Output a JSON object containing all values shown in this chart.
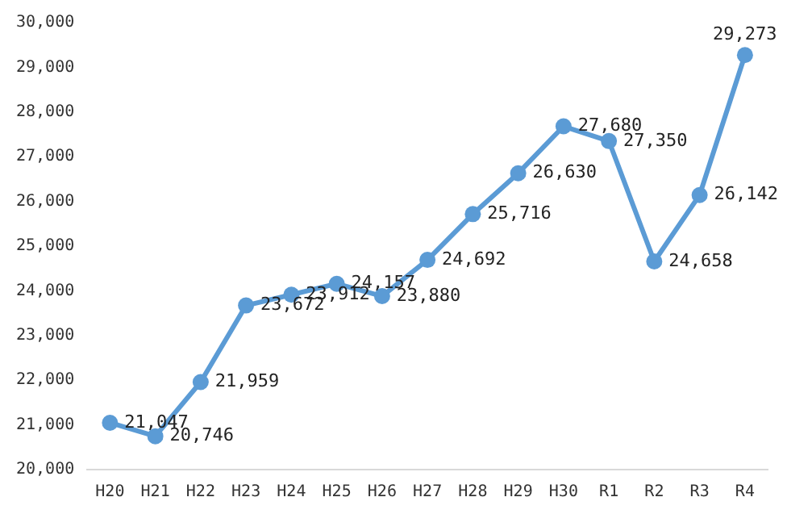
{
  "chart_data": {
    "type": "line",
    "categories": [
      "H20",
      "H21",
      "H22",
      "H23",
      "H24",
      "H25",
      "H26",
      "H27",
      "H28",
      "H29",
      "H30",
      "R1",
      "R2",
      "R3",
      "R4"
    ],
    "values": [
      21047,
      20746,
      21959,
      23672,
      23912,
      24157,
      23880,
      24692,
      25716,
      26630,
      27680,
      27350,
      24658,
      26142,
      29273
    ],
    "value_labels": [
      "21,047",
      "20,746",
      "21,959",
      "23,672",
      "23,912",
      "24,157",
      "23,880",
      "24,692",
      "25,716",
      "26,630",
      "27,680",
      "27,350",
      "24,658",
      "26,142",
      "29,273"
    ],
    "color": "#5b9bd5",
    "marker": "circle",
    "grid": false,
    "legend": false,
    "ylim": [
      20000,
      30000
    ],
    "yticks": [
      {
        "value": 20000,
        "label": "20,000"
      },
      {
        "value": 21000,
        "label": "21,000"
      },
      {
        "value": 22000,
        "label": "22,000"
      },
      {
        "value": 23000,
        "label": "23,000"
      },
      {
        "value": 24000,
        "label": "24,000"
      },
      {
        "value": 25000,
        "label": "25,000"
      },
      {
        "value": 26000,
        "label": "26,000"
      },
      {
        "value": 27000,
        "label": "27,000"
      },
      {
        "value": 28000,
        "label": "28,000"
      },
      {
        "value": 29000,
        "label": "29,000"
      },
      {
        "value": 30000,
        "label": "30,000"
      }
    ]
  }
}
